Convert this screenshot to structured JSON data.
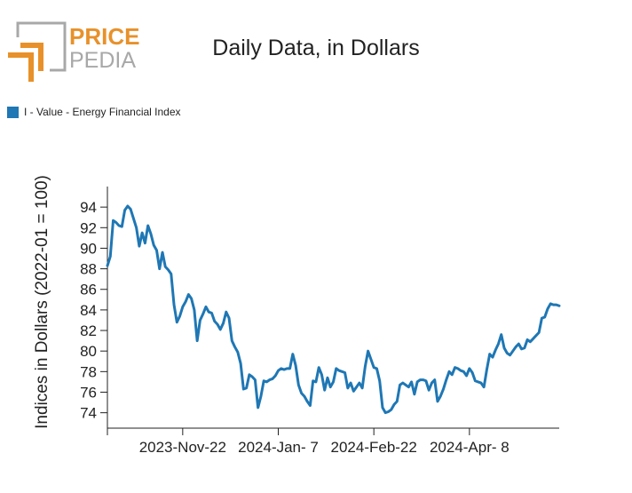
{
  "header": {
    "logo_top": "PRICE",
    "logo_bottom": "PEDIA",
    "logo_orange": "#e8912a",
    "logo_gray": "#a8a8a8"
  },
  "chart_data": {
    "type": "line",
    "title": "Daily Data, in Dollars",
    "ylabel": "Indices in Dollars (2022-01 = 100)",
    "xlabel": "",
    "ylim": [
      72.5,
      96
    ],
    "yticks": [
      74,
      76,
      78,
      80,
      82,
      84,
      86,
      88,
      90,
      92,
      94
    ],
    "x_tick_labels": [
      "2023-Nov-22",
      "2024-Jan- 7",
      "2024-Feb-22",
      "2024-Apr- 8"
    ],
    "x_tick_index": [
      26,
      59,
      92,
      125
    ],
    "legend_position": "top-left",
    "series": [
      {
        "name": "I - Value - Energy Financial Index",
        "color": "#1f77b4",
        "values": [
          88.3,
          89.2,
          92.7,
          92.5,
          92.2,
          92.1,
          93.7,
          94.1,
          93.8,
          92.9,
          92.0,
          90.2,
          91.5,
          90.5,
          92.2,
          91.4,
          90.3,
          89.8,
          88.0,
          89.6,
          88.2,
          87.9,
          87.5,
          84.5,
          82.8,
          83.4,
          84.3,
          84.8,
          85.5,
          85.1,
          84.0,
          81.0,
          83.0,
          83.6,
          84.3,
          83.8,
          83.7,
          82.9,
          82.6,
          82.1,
          82.7,
          83.8,
          83.2,
          81.0,
          80.4,
          79.9,
          78.8,
          76.3,
          76.4,
          77.7,
          77.5,
          77.2,
          74.5,
          75.6,
          77.1,
          77.0,
          77.2,
          77.3,
          77.6,
          78.1,
          78.3,
          78.2,
          78.3,
          78.3,
          79.7,
          78.6,
          76.7,
          75.9,
          75.6,
          75.1,
          74.7,
          77.1,
          77.0,
          78.4,
          77.7,
          76.2,
          77.4,
          76.5,
          77.0,
          78.3,
          78.1,
          78.0,
          77.9,
          76.4,
          76.9,
          76.1,
          76.5,
          76.9,
          76.4,
          78.5,
          80.0,
          79.2,
          78.4,
          78.3,
          77.1,
          74.5,
          74.0,
          74.1,
          74.3,
          74.8,
          75.1,
          76.7,
          76.9,
          76.7,
          76.5,
          77.0,
          75.8,
          77.0,
          77.2,
          77.2,
          77.1,
          76.2,
          76.9,
          77.2,
          75.1,
          75.6,
          76.3,
          77.2,
          78.0,
          77.7,
          78.4,
          78.3,
          78.1,
          78.0,
          77.6,
          78.3,
          77.9,
          77.1,
          77.0,
          76.9,
          76.5,
          78.2,
          79.7,
          79.4,
          80.1,
          80.7,
          81.6,
          80.3,
          79.8,
          79.6,
          80.0,
          80.4,
          80.7,
          80.2,
          80.3,
          81.1,
          80.9,
          81.2,
          81.5,
          81.8,
          83.2,
          83.3,
          84.1,
          84.6,
          84.5,
          84.5,
          84.4
        ]
      }
    ]
  }
}
